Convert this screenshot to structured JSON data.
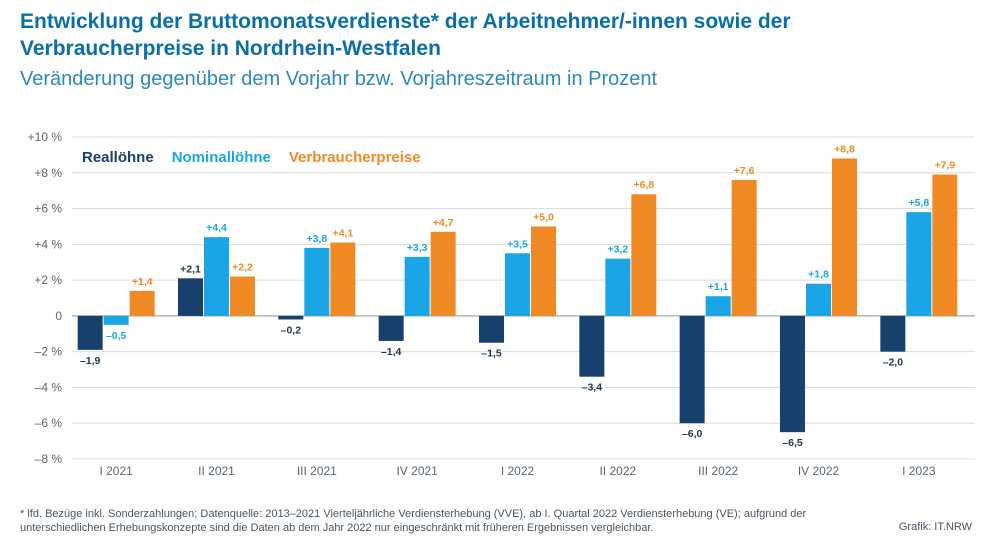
{
  "header": {
    "title": "Entwicklung der Bruttomonatsverdienste* der Arbeitnehmer/-innen sowie der Verbraucherpreise in Nordrhein-Westfalen",
    "subtitle": "Veränderung gegenüber dem Vorjahr bzw. Vorjahreszeitraum in Prozent"
  },
  "chart_data": {
    "type": "bar",
    "categories": [
      "I 2021",
      "II 2021",
      "III 2021",
      "IV 2021",
      "I 2022",
      "II 2022",
      "III 2022",
      "IV 2022",
      "I 2023"
    ],
    "series": [
      {
        "name": "Reallöhne",
        "color": "#17406d",
        "values": [
          -1.9,
          2.1,
          -0.2,
          -1.4,
          -1.5,
          -3.4,
          -6.0,
          -6.5,
          -2.0
        ],
        "labels": [
          "–1,9",
          "+2,1",
          "–0,2",
          "–1,4",
          "–1,5",
          "–3,4",
          "–6,0",
          "–6,5",
          "–2,0"
        ]
      },
      {
        "name": "Nominallöhne",
        "color": "#1aa6e6",
        "values": [
          -0.5,
          4.4,
          3.8,
          3.3,
          3.5,
          3.2,
          1.1,
          1.8,
          5.8
        ],
        "labels": [
          "–0,5",
          "+4,4",
          "+3,8",
          "+3,3",
          "+3,5",
          "+3,2",
          "+1,1",
          "+1,8",
          "+5,8"
        ]
      },
      {
        "name": "Verbraucherpreise",
        "color": "#f08a24",
        "values": [
          1.4,
          2.2,
          4.1,
          4.7,
          5.0,
          6.8,
          7.6,
          8.8,
          7.9
        ],
        "labels": [
          "+1,4",
          "+2,2",
          "+4,1",
          "+4,7",
          "+5,0",
          "+6,8",
          "+7,6",
          "+8,8",
          "+7,9"
        ]
      }
    ],
    "ylim": [
      -8,
      10
    ],
    "yticks": [
      10,
      8,
      6,
      4,
      2,
      0,
      -2,
      -4,
      -6,
      -8
    ],
    "ytick_labels": [
      "+10 %",
      "+8 %",
      "+6 %",
      "+4 %",
      "+2 %",
      "0",
      "–2 %",
      "–4 %",
      "–6 %",
      "–8 %"
    ],
    "grid": true,
    "legend_position": "top-left",
    "colors": {
      "axis_text": "#5b6670",
      "grid": "#d9dde1",
      "zero_line": "#8a949c"
    }
  },
  "footer": {
    "footnote": "* lfd. Bezüge inkl. Sonderzahlungen; Datenquelle: 2013–2021 Vierteljährliche Verdiensterhebung (VVE), ab I. Quartal 2022 Verdiensterhebung (VE); aufgrund der unterschiedlichen Erhebungskonzepte sind die Daten ab dem Jahr 2022 nur eingeschränkt mit früheren Ergebnissen vergleichbar.",
    "credit": "Grafik: IT.NRW"
  }
}
